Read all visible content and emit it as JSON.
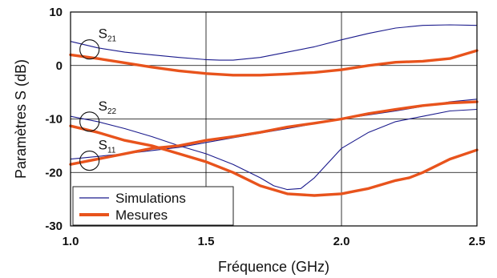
{
  "chart_data": {
    "type": "line",
    "xlabel": "Fréquence (GHz)",
    "ylabel": "Paramètres S (dB)",
    "xlim": [
      1.0,
      2.5
    ],
    "ylim": [
      -30,
      10
    ],
    "xticks": [
      1.0,
      1.5,
      2.0,
      2.5
    ],
    "xtick_labels": [
      "1.0",
      "1.5",
      "2.0",
      "2.5"
    ],
    "yticks": [
      10,
      0,
      -10,
      -20,
      -30
    ],
    "ytick_labels": [
      "10",
      "0",
      "-10",
      "-20",
      "-30"
    ],
    "grid": true,
    "legend_position": "bottom-left",
    "legend": [
      {
        "label": "Simulations",
        "color": "#1a1a8c",
        "style": "thin"
      },
      {
        "label": "Mesures",
        "color": "#e8531c",
        "style": "thick"
      }
    ],
    "annotations": [
      {
        "base": "S",
        "sub": "21",
        "x": 1.07,
        "y": 3.0
      },
      {
        "base": "S",
        "sub": "22",
        "x": 1.07,
        "y": -10.5
      },
      {
        "base": "S",
        "sub": "11",
        "x": 1.07,
        "y": -17.8
      }
    ],
    "series": [
      {
        "group": "Simulations",
        "param": "S21",
        "x": [
          1.0,
          1.1,
          1.2,
          1.3,
          1.4,
          1.5,
          1.55,
          1.6,
          1.7,
          1.8,
          1.9,
          2.0,
          2.1,
          2.2,
          2.3,
          2.4,
          2.5
        ],
        "y": [
          4.5,
          3.3,
          2.5,
          2.0,
          1.5,
          1.1,
          1.0,
          1.0,
          1.5,
          2.5,
          3.5,
          4.8,
          6.0,
          7.0,
          7.5,
          7.6,
          7.5
        ]
      },
      {
        "group": "Simulations",
        "param": "S22",
        "x": [
          1.0,
          1.1,
          1.2,
          1.3,
          1.4,
          1.5,
          1.6,
          1.7,
          1.75,
          1.8,
          1.85,
          1.9,
          2.0,
          2.1,
          2.2,
          2.3,
          2.4,
          2.5
        ],
        "y": [
          -9.5,
          -10.5,
          -11.8,
          -13.3,
          -15.0,
          -16.5,
          -18.5,
          -21.0,
          -22.5,
          -23.2,
          -23.0,
          -21.0,
          -15.5,
          -12.5,
          -10.5,
          -9.5,
          -8.5,
          -8.2
        ]
      },
      {
        "group": "Simulations",
        "param": "S11",
        "x": [
          1.0,
          1.2,
          1.4,
          1.6,
          1.8,
          2.0,
          2.2,
          2.4,
          2.5
        ],
        "y": [
          -17.5,
          -16.5,
          -15.3,
          -13.5,
          -11.8,
          -10.0,
          -8.5,
          -6.8,
          -6.3
        ]
      },
      {
        "group": "Mesures",
        "param": "S21",
        "x": [
          1.0,
          1.1,
          1.2,
          1.3,
          1.4,
          1.5,
          1.6,
          1.7,
          1.8,
          1.9,
          2.0,
          2.1,
          2.2,
          2.3,
          2.4,
          2.5
        ],
        "y": [
          2.0,
          1.3,
          0.5,
          -0.3,
          -1.0,
          -1.5,
          -1.8,
          -1.8,
          -1.6,
          -1.3,
          -0.8,
          0.0,
          0.6,
          0.8,
          1.3,
          2.8
        ]
      },
      {
        "group": "Mesures",
        "param": "S22",
        "x": [
          1.0,
          1.1,
          1.2,
          1.3,
          1.4,
          1.5,
          1.6,
          1.7,
          1.8,
          1.9,
          2.0,
          2.05,
          2.1,
          2.2,
          2.25,
          2.3,
          2.4,
          2.5
        ],
        "y": [
          -11.3,
          -12.5,
          -14.0,
          -15.0,
          -16.5,
          -18.0,
          -20.0,
          -22.5,
          -24.0,
          -24.3,
          -24.0,
          -23.5,
          -23.0,
          -21.5,
          -21.0,
          -20.0,
          -17.5,
          -15.8
        ]
      },
      {
        "group": "Mesures",
        "param": "S11",
        "x": [
          1.0,
          1.1,
          1.2,
          1.3,
          1.4,
          1.5,
          1.6,
          1.7,
          1.8,
          1.9,
          2.0,
          2.1,
          2.2,
          2.3,
          2.4,
          2.5
        ],
        "y": [
          -18.5,
          -17.5,
          -16.5,
          -15.5,
          -15.0,
          -14.0,
          -13.3,
          -12.5,
          -11.5,
          -10.8,
          -10.0,
          -9.0,
          -8.2,
          -7.5,
          -7.0,
          -6.8
        ]
      }
    ]
  }
}
